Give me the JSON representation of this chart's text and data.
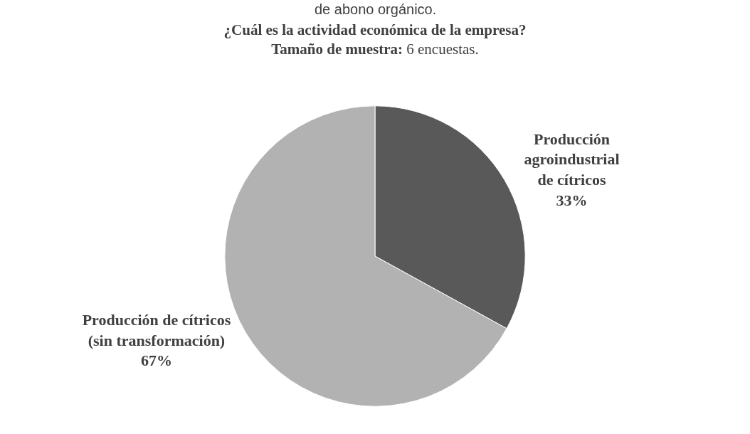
{
  "chart_data": {
    "type": "pie",
    "title": "¿Cuál es la actividad económica de la empresa?",
    "subtitle": "Tamaño de muestra: 6 encuestas.",
    "annotations": [
      "de abono orgánico."
    ],
    "categories": [
      "Producción agroindustrial de cítricos",
      "Producción de cítricos (sin transformación)"
    ],
    "values": [
      33,
      67
    ],
    "value_labels": [
      "33%",
      "67%"
    ],
    "colors": [
      "#595959",
      "#b2b2b2"
    ],
    "legend": false
  }
}
